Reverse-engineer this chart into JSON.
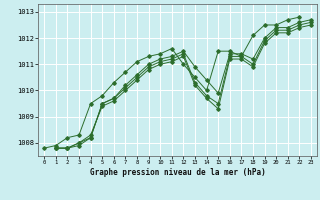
{
  "xlabel": "Graphe pression niveau de la mer (hPa)",
  "bg_color": "#cceef0",
  "grid_color": "#ffffff",
  "line_color": "#2d6e2d",
  "xlim": [
    -0.5,
    23.5
  ],
  "ylim": [
    1007.5,
    1013.3
  ],
  "yticks": [
    1008,
    1009,
    1010,
    1011,
    1012,
    1013
  ],
  "xticks": [
    0,
    1,
    2,
    3,
    4,
    5,
    6,
    7,
    8,
    9,
    10,
    11,
    12,
    13,
    14,
    15,
    16,
    17,
    18,
    19,
    20,
    21,
    22,
    23
  ],
  "series": [
    [
      1007.8,
      1007.8,
      1007.9,
      1008.2,
      1009.5,
      1009.7,
      1010.2,
      1010.6,
      1011.0,
      1011.2,
      1011.3,
      1011.5,
      1010.9,
      1010.4,
      1009.9,
      1011.4,
      1011.4,
      1011.2,
      1012.0,
      1012.4,
      1012.4,
      1012.6,
      1012.7
    ],
    [
      1007.8,
      1007.8,
      1008.0,
      1008.2,
      1009.5,
      1009.7,
      1010.1,
      1010.5,
      1010.9,
      1011.1,
      1011.2,
      1011.4,
      1010.3,
      1009.8,
      1009.5,
      1011.3,
      1011.3,
      1011.0,
      1011.9,
      1012.3,
      1012.3,
      1012.5,
      1012.6
    ],
    [
      1007.8,
      1007.8,
      1008.0,
      1008.3,
      1009.4,
      1009.6,
      1010.0,
      1010.4,
      1010.8,
      1011.0,
      1011.1,
      1011.3,
      1010.2,
      1009.7,
      1009.3,
      1011.2,
      1011.2,
      1010.9,
      1011.8,
      1012.2,
      1012.2,
      1012.4,
      1012.5
    ]
  ],
  "series4": [
    1007.8,
    1007.9,
    1008.2,
    1008.3,
    1009.5,
    1009.8,
    1010.3,
    1010.7,
    1011.1,
    1011.3,
    1011.4,
    1011.6,
    1011.0,
    1010.5,
    1010.0,
    1011.5,
    1011.5,
    1011.3,
    1012.1,
    1012.5,
    1012.5,
    1012.7,
    1012.8
  ]
}
